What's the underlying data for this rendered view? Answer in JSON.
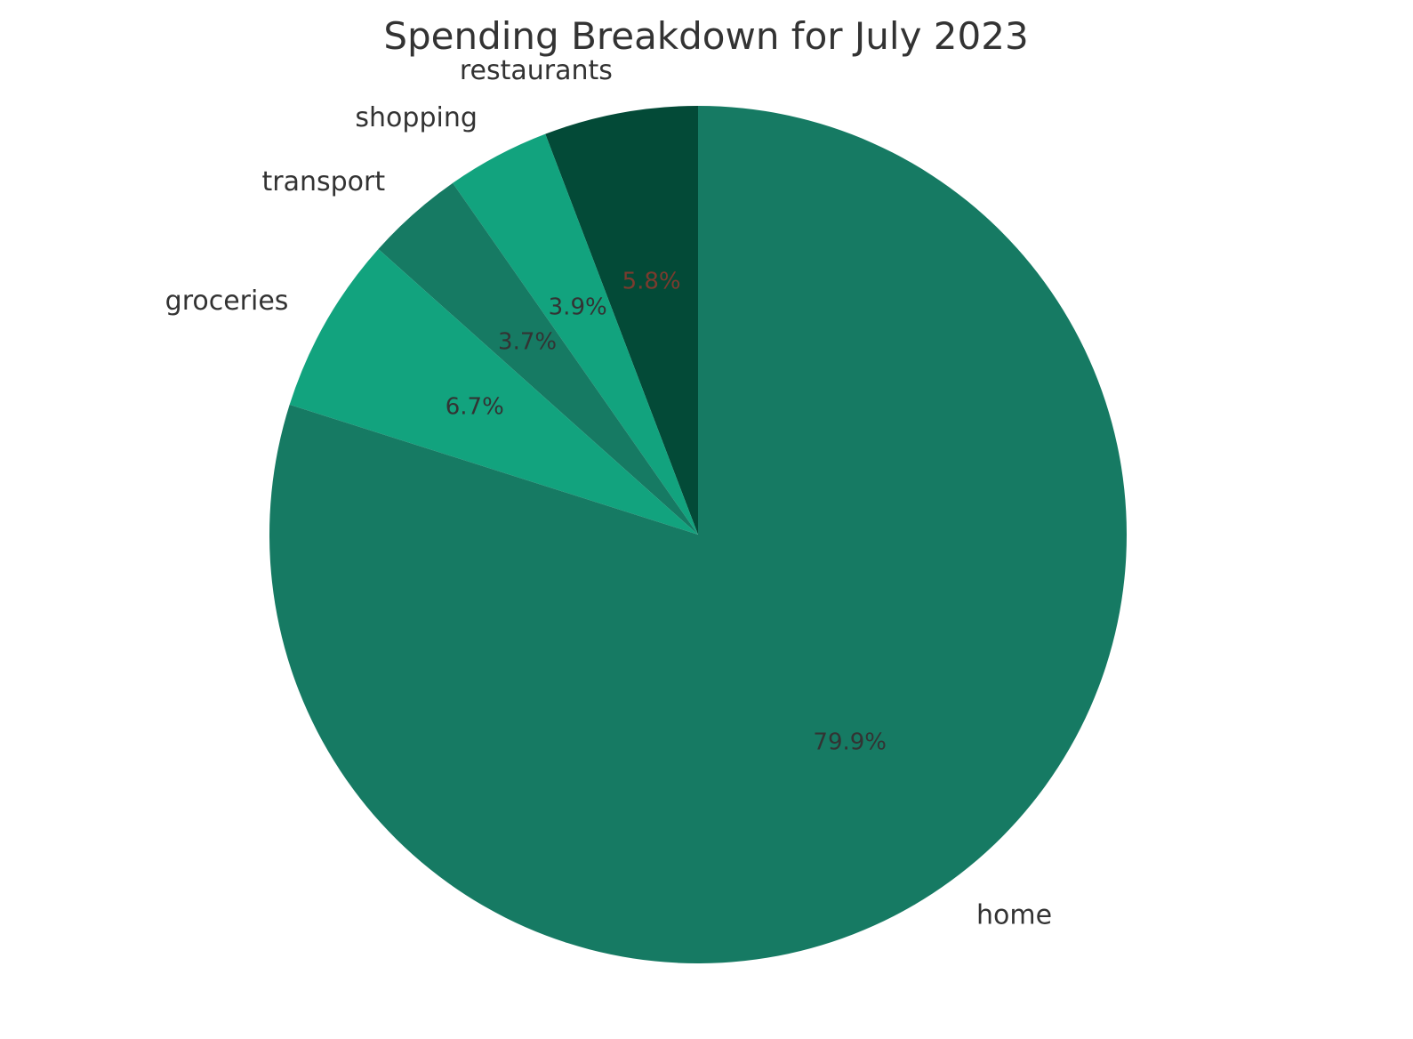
{
  "chart_data": {
    "type": "pie",
    "title": "Spending Breakdown for July 2023",
    "start_angle_deg": 90,
    "direction": "counterclockwise",
    "slices": [
      {
        "label": "restaurants",
        "value": 5.8,
        "pct_label": "5.8%",
        "color": "#034a37",
        "pct_color": "#7a3b2e"
      },
      {
        "label": "shopping",
        "value": 3.9,
        "pct_label": "3.9%",
        "color": "#12a37e",
        "pct_color": "#333333"
      },
      {
        "label": "transport",
        "value": 3.7,
        "pct_label": "3.7%",
        "color": "#167a63",
        "pct_color": "#333333"
      },
      {
        "label": "groceries",
        "value": 6.7,
        "pct_label": "6.7%",
        "color": "#12a37e",
        "pct_color": "#333333"
      },
      {
        "label": "home",
        "value": 79.9,
        "pct_label": "79.9%",
        "color": "#167a63",
        "pct_color": "#333333"
      }
    ]
  }
}
